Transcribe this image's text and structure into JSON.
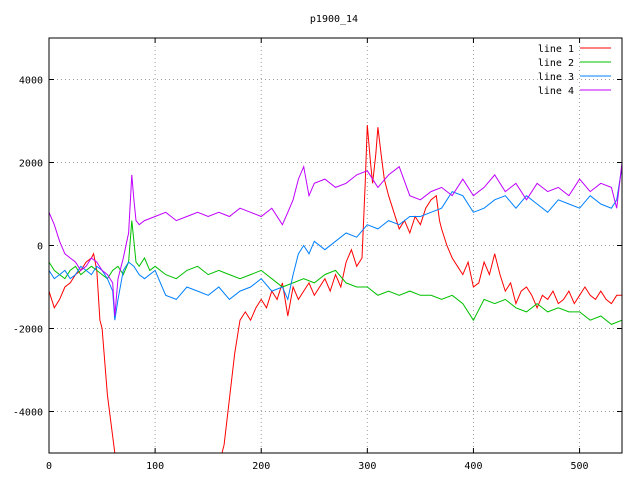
{
  "chart_data": {
    "type": "line",
    "title": "p1900_14",
    "xlabel": "",
    "ylabel": "",
    "xlim": [
      0,
      540
    ],
    "ylim": [
      -5000,
      5000
    ],
    "xticks": [
      0,
      100,
      200,
      300,
      400,
      500
    ],
    "yticks": [
      -4000,
      -2000,
      0,
      2000,
      4000
    ],
    "grid": true,
    "legend_position": "top-right",
    "series": [
      {
        "name": "line 1",
        "color": "#ff0000",
        "x": [
          0,
          5,
          10,
          15,
          20,
          25,
          30,
          35,
          40,
          42,
          45,
          48,
          50,
          55,
          60,
          62,
          64,
          70,
          80,
          100,
          120,
          150,
          160,
          163,
          165,
          170,
          175,
          180,
          185,
          190,
          195,
          200,
          205,
          210,
          215,
          220,
          225,
          230,
          235,
          240,
          245,
          250,
          255,
          260,
          265,
          270,
          275,
          280,
          285,
          290,
          295,
          298,
          300,
          303,
          305,
          308,
          310,
          313,
          316,
          320,
          325,
          330,
          335,
          340,
          345,
          350,
          355,
          360,
          365,
          368,
          370,
          375,
          380,
          385,
          390,
          395,
          400,
          405,
          410,
          415,
          420,
          425,
          430,
          435,
          440,
          445,
          450,
          455,
          460,
          465,
          470,
          475,
          480,
          485,
          490,
          495,
          500,
          505,
          510,
          515,
          520,
          525,
          530,
          535,
          540
        ],
        "y": [
          -1100,
          -1500,
          -1300,
          -1000,
          -900,
          -700,
          -600,
          -400,
          -300,
          -200,
          -600,
          -1800,
          -2000,
          -3600,
          -4600,
          -5000,
          -5000,
          -5000,
          -5000,
          -5000,
          -5000,
          -5000,
          -5000,
          -5000,
          -4800,
          -3700,
          -2600,
          -1800,
          -1600,
          -1800,
          -1500,
          -1300,
          -1500,
          -1100,
          -1300,
          -900,
          -1700,
          -1000,
          -1300,
          -1100,
          -900,
          -1200,
          -1000,
          -800,
          -1100,
          -700,
          -1000,
          -400,
          -100,
          -500,
          -300,
          1500,
          2900,
          2000,
          1500,
          2200,
          2850,
          2200,
          1600,
          1200,
          800,
          400,
          600,
          300,
          700,
          500,
          900,
          1100,
          1200,
          600,
          400,
          0,
          -300,
          -500,
          -700,
          -400,
          -1000,
          -900,
          -400,
          -700,
          -200,
          -700,
          -1100,
          -900,
          -1400,
          -1100,
          -1000,
          -1200,
          -1500,
          -1200,
          -1300,
          -1100,
          -1400,
          -1300,
          -1100,
          -1400,
          -1200,
          -1000,
          -1200,
          -1300,
          -1100,
          -1300,
          -1400,
          -1200,
          -1200
        ]
      },
      {
        "name": "line 2",
        "color": "#00c000",
        "x": [
          0,
          5,
          10,
          15,
          20,
          25,
          30,
          35,
          40,
          45,
          50,
          55,
          60,
          65,
          70,
          75,
          78,
          80,
          82,
          85,
          90,
          95,
          100,
          110,
          120,
          130,
          140,
          150,
          160,
          170,
          180,
          190,
          200,
          210,
          220,
          230,
          240,
          250,
          260,
          270,
          280,
          290,
          300,
          310,
          320,
          330,
          340,
          350,
          360,
          370,
          380,
          390,
          400,
          410,
          420,
          430,
          440,
          450,
          460,
          470,
          480,
          490,
          500,
          510,
          520,
          530,
          540
        ],
        "y": [
          -400,
          -600,
          -700,
          -800,
          -600,
          -500,
          -700,
          -600,
          -500,
          -600,
          -700,
          -800,
          -600,
          -500,
          -700,
          -400,
          600,
          100,
          -400,
          -500,
          -300,
          -600,
          -500,
          -700,
          -800,
          -600,
          -500,
          -700,
          -600,
          -700,
          -800,
          -700,
          -600,
          -800,
          -1000,
          -900,
          -800,
          -900,
          -700,
          -600,
          -900,
          -1000,
          -1000,
          -1200,
          -1100,
          -1200,
          -1100,
          -1200,
          -1200,
          -1300,
          -1200,
          -1400,
          -1800,
          -1300,
          -1400,
          -1300,
          -1500,
          -1600,
          -1400,
          -1600,
          -1500,
          -1600,
          -1600,
          -1800,
          -1700,
          -1900,
          -1800
        ]
      },
      {
        "name": "line 3",
        "color": "#0080ff",
        "x": [
          0,
          5,
          10,
          15,
          20,
          25,
          30,
          35,
          40,
          45,
          50,
          55,
          60,
          62,
          65,
          70,
          75,
          80,
          85,
          90,
          100,
          110,
          120,
          130,
          140,
          150,
          160,
          170,
          180,
          190,
          200,
          210,
          220,
          225,
          230,
          235,
          240,
          245,
          250,
          260,
          270,
          280,
          290,
          300,
          310,
          320,
          330,
          340,
          350,
          360,
          370,
          380,
          390,
          400,
          410,
          420,
          430,
          440,
          450,
          460,
          470,
          480,
          490,
          500,
          510,
          520,
          530,
          535,
          540
        ],
        "y": [
          -600,
          -800,
          -700,
          -600,
          -800,
          -700,
          -500,
          -600,
          -700,
          -500,
          -600,
          -800,
          -1100,
          -1800,
          -1300,
          -600,
          -400,
          -500,
          -700,
          -800,
          -600,
          -1200,
          -1300,
          -1000,
          -1100,
          -1200,
          -1000,
          -1300,
          -1100,
          -1000,
          -800,
          -1100,
          -1000,
          -1300,
          -700,
          -200,
          0,
          -200,
          100,
          -100,
          100,
          300,
          200,
          500,
          400,
          600,
          500,
          700,
          700,
          800,
          900,
          1300,
          1200,
          800,
          900,
          1100,
          1200,
          900,
          1200,
          1000,
          800,
          1100,
          1000,
          900,
          1200,
          1000,
          900,
          1100,
          1900
        ]
      },
      {
        "name": "line 4",
        "color": "#c000ff",
        "x": [
          0,
          5,
          10,
          15,
          20,
          25,
          30,
          35,
          40,
          45,
          50,
          55,
          60,
          62,
          65,
          70,
          75,
          78,
          80,
          82,
          85,
          90,
          100,
          110,
          120,
          130,
          140,
          150,
          160,
          170,
          180,
          190,
          200,
          210,
          220,
          225,
          230,
          235,
          240,
          245,
          250,
          260,
          270,
          280,
          290,
          300,
          310,
          320,
          330,
          340,
          350,
          360,
          370,
          380,
          390,
          400,
          410,
          420,
          430,
          440,
          450,
          460,
          470,
          480,
          490,
          500,
          510,
          520,
          530,
          535,
          540
        ],
        "y": [
          800,
          500,
          100,
          -200,
          -300,
          -400,
          -600,
          -500,
          -300,
          -400,
          -600,
          -700,
          -900,
          -1700,
          -800,
          -300,
          300,
          1700,
          1100,
          600,
          500,
          600,
          700,
          800,
          600,
          700,
          800,
          700,
          800,
          700,
          900,
          800,
          700,
          900,
          500,
          800,
          1100,
          1600,
          1900,
          1200,
          1500,
          1600,
          1400,
          1500,
          1700,
          1800,
          1400,
          1700,
          1900,
          1200,
          1100,
          1300,
          1400,
          1200,
          1600,
          1200,
          1400,
          1700,
          1300,
          1500,
          1100,
          1500,
          1300,
          1400,
          1200,
          1600,
          1300,
          1500,
          1400,
          900,
          2000
        ]
      }
    ]
  }
}
